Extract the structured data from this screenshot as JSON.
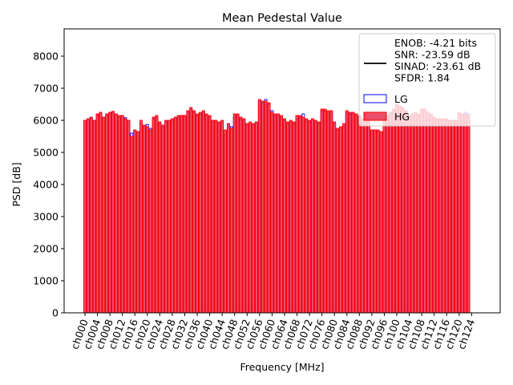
{
  "chart_data": {
    "type": "bar",
    "title": "Mean Pedestal Value",
    "xlabel": "Frequency [MHz]",
    "ylabel": "PSD [dB]",
    "ylim": [
      0,
      8850
    ],
    "yticks": [
      0,
      1000,
      2000,
      3000,
      4000,
      5000,
      6000,
      7000,
      8000
    ],
    "grid": false,
    "legend_position": "top-right",
    "xtick_labels": [
      "ch000",
      "ch004",
      "ch008",
      "ch012",
      "ch016",
      "ch020",
      "ch024",
      "ch028",
      "ch032",
      "ch036",
      "ch040",
      "ch044",
      "ch048",
      "ch052",
      "ch056",
      "ch060",
      "ch064",
      "ch068",
      "ch072",
      "ch076",
      "ch080",
      "ch084",
      "ch088",
      "ch092",
      "ch096",
      "ch100",
      "ch104",
      "ch108",
      "ch112",
      "ch116",
      "ch120",
      "ch124"
    ],
    "annotation_lines": [
      "ENOB: -4.21 bits",
      "SNR: -23.59 dB",
      "SINAD: -23.61 dB",
      "SFDR: 1.84"
    ],
    "series": [
      {
        "name": "LG",
        "edge_color": "#0000ff",
        "fill_color": "none",
        "values": [
          6000,
          6050,
          6080,
          6000,
          6150,
          6200,
          6100,
          6150,
          6200,
          6250,
          6200,
          6100,
          6150,
          6080,
          6000,
          5600,
          5700,
          5650,
          5900,
          5800,
          5870,
          5750,
          6050,
          6100,
          5900,
          5850,
          5950,
          6000,
          6000,
          6050,
          6100,
          6150,
          6150,
          6250,
          6350,
          6250,
          6150,
          6200,
          6250,
          6150,
          6100,
          6000,
          5950,
          5900,
          5950,
          5550,
          5850,
          5800,
          6100,
          6150,
          6050,
          6000,
          5850,
          5900,
          5850,
          5900,
          6600,
          6550,
          6650,
          6500,
          6300,
          6150,
          6150,
          6100,
          6000,
          5900,
          5950,
          5900,
          6150,
          6100,
          6200,
          6000,
          5950,
          6000,
          5950,
          5900,
          6300,
          6300,
          6200,
          6250,
          5900,
          5700,
          5750,
          5800,
          6250,
          6200,
          6200,
          6150,
          6100,
          6000,
          6150,
          6000,
          5700,
          5700,
          5650,
          5500,
          6000,
          6100,
          6200,
          6300,
          6450,
          6400,
          6350,
          6250,
          6100,
          6150,
          6200,
          6150,
          6300,
          6300,
          6200,
          6150,
          6050,
          6000,
          6000,
          6000,
          6000,
          5950,
          5950,
          5950,
          6200,
          6150,
          6250,
          6200
        ]
      },
      {
        "name": "HG",
        "edge_color": "#ff0000",
        "fill_color": "#e8304f",
        "values": [
          6000,
          6050,
          6100,
          6000,
          6200,
          6250,
          6100,
          6200,
          6250,
          6280,
          6200,
          6150,
          6150,
          6050,
          6000,
          5500,
          5700,
          5650,
          6000,
          5850,
          5800,
          5700,
          6100,
          6150,
          5950,
          5850,
          6000,
          6000,
          6050,
          6100,
          6150,
          6150,
          6150,
          6300,
          6400,
          6300,
          6200,
          6250,
          6300,
          6200,
          6150,
          6000,
          6000,
          5950,
          6000,
          5700,
          5900,
          5750,
          6200,
          6200,
          6100,
          6050,
          5900,
          5950,
          5900,
          5950,
          6650,
          6600,
          6600,
          6550,
          6250,
          6200,
          6200,
          6150,
          6050,
          5950,
          6000,
          5950,
          6150,
          6150,
          6100,
          6050,
          6000,
          6050,
          6000,
          5950,
          6350,
          6350,
          6300,
          6300,
          5950,
          5750,
          5800,
          5900,
          6300,
          6250,
          6250,
          6200,
          6150,
          6050,
          6200,
          6050,
          5700,
          5700,
          5700,
          5650,
          6050,
          6150,
          6250,
          6350,
          6500,
          6450,
          6400,
          6300,
          6150,
          6200,
          6250,
          6200,
          6350,
          6350,
          6250,
          6200,
          6100,
          6050,
          6050,
          6050,
          6050,
          6000,
          6000,
          6000,
          6250,
          6200,
          6200,
          6150
        ]
      }
    ]
  }
}
